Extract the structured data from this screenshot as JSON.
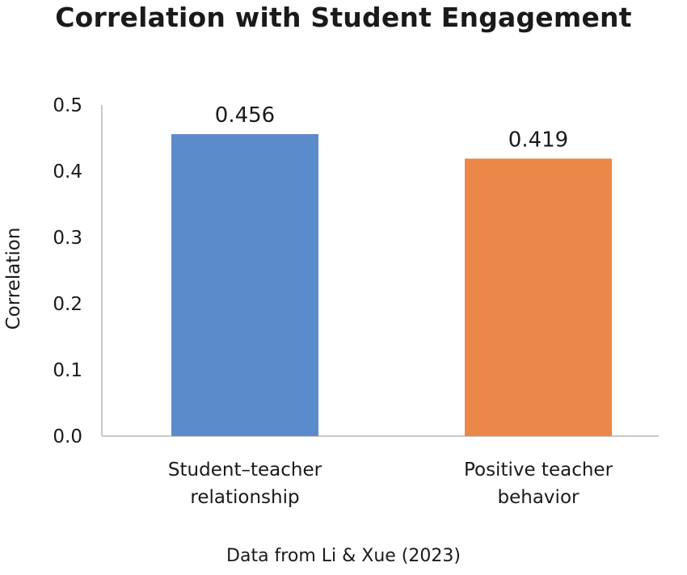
{
  "chart_data": {
    "type": "bar",
    "title": "Correlation with Student Engagement",
    "xlabel": "",
    "ylabel": "Correlation",
    "ylim": [
      0,
      0.5
    ],
    "yticks": [
      "0.0",
      "0.1",
      "0.2",
      "0.3",
      "0.4",
      "0.5"
    ],
    "grid": false,
    "legend": "none",
    "categories": [
      [
        "Student–teacher",
        "relationship"
      ],
      [
        "Positive teacher",
        "behavior"
      ]
    ],
    "values": [
      0.456,
      0.419
    ],
    "data_labels": [
      "0.456",
      "0.419"
    ],
    "colors": [
      "#5b8bcb",
      "#eb8748"
    ]
  },
  "source_note": "Data from Li & Xue (2023)"
}
